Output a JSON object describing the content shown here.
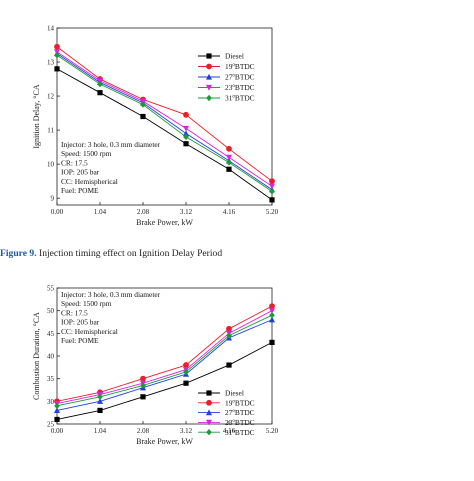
{
  "figures": [
    {
      "caption_label": "Figure 9.",
      "caption_text": "Injection timing effect on Ignition Delay Period"
    }
  ],
  "colors": {
    "diesel": "#000000",
    "btdc19": "#e8202a",
    "btdc27": "#1f3fe0",
    "btdc23": "#e020e0",
    "btdc31": "#1a9a3a"
  },
  "chart_data": [
    {
      "type": "line",
      "xlabel": "Brake Power, kW",
      "ylabel": "Ignition Delay, °CA",
      "x": [
        0.0,
        1.04,
        2.08,
        3.12,
        4.16,
        5.2
      ],
      "x_tick_labels": [
        "0.00",
        "1.04",
        "2.08",
        "3.12",
        "4.16",
        "5.20"
      ],
      "xlim": [
        0,
        5.2
      ],
      "ylim": [
        8.8,
        14
      ],
      "y_ticks": [
        9,
        10,
        11,
        12,
        13,
        14
      ],
      "y_tick_labels": [
        "9",
        "10",
        "11",
        "12",
        "13",
        "14"
      ],
      "legend_position": "right",
      "annotations": [
        "Injector: 3 hole, 0.3 mm diameter",
        "Speed: 1500 rpm",
        "CR: 17.5",
        "IOP: 205 bar",
        "CC: Hemispherical",
        "Fuel: POME"
      ],
      "series": [
        {
          "name": "Diesel",
          "name_base": "Diesel",
          "name_sup": "",
          "name_suffix": "",
          "marker": "square",
          "color_key": "diesel",
          "values": [
            12.8,
            12.1,
            11.4,
            10.6,
            9.85,
            8.95
          ]
        },
        {
          "name": "19°BTDC",
          "name_base": "19",
          "name_sup": "o",
          "name_suffix": "BTDC",
          "marker": "circle",
          "color_key": "btdc19",
          "values": [
            13.45,
            12.5,
            11.9,
            11.45,
            10.45,
            9.5
          ]
        },
        {
          "name": "27°BTDC",
          "name_base": "27",
          "name_sup": "o",
          "name_suffix": "BTDC",
          "marker": "triangle-up",
          "color_key": "btdc27",
          "values": [
            13.25,
            12.4,
            11.8,
            10.9,
            10.1,
            9.25
          ]
        },
        {
          "name": "23°BTDC",
          "name_base": "23",
          "name_sup": "o",
          "name_suffix": "BTDC",
          "marker": "triangle-down",
          "color_key": "btdc23",
          "values": [
            13.3,
            12.45,
            11.85,
            11.05,
            10.2,
            9.35
          ]
        },
        {
          "name": "31°BTDC",
          "name_base": "31",
          "name_sup": "o",
          "name_suffix": "BTDC",
          "marker": "diamond",
          "color_key": "btdc31",
          "values": [
            13.2,
            12.35,
            11.75,
            10.8,
            10.05,
            9.2
          ]
        }
      ]
    },
    {
      "type": "line",
      "xlabel": "Brake Power, kW",
      "ylabel": "Combustion Duration, °CA",
      "x": [
        0.0,
        1.04,
        2.08,
        3.12,
        4.16,
        5.2
      ],
      "x_tick_labels": [
        "0.00",
        "1.04",
        "2.08",
        "3.12",
        "4.16",
        "5.20"
      ],
      "xlim": [
        0,
        5.2
      ],
      "ylim": [
        25,
        55
      ],
      "y_ticks": [
        25,
        30,
        35,
        40,
        45,
        50,
        55
      ],
      "y_tick_labels": [
        "25",
        "30",
        "35",
        "40",
        "45",
        "50",
        "55"
      ],
      "legend_position": "bottom-right",
      "annotations": [
        "Injector: 3 hole, 0.3 mm diameter",
        "Speed: 1500 rpm",
        "CR: 17.5",
        "IOP: 205 bar",
        "CC: Hemispherical",
        "Fuel: POME"
      ],
      "series": [
        {
          "name": "Diesel",
          "name_base": "Diesel",
          "name_sup": "",
          "name_suffix": "",
          "marker": "square",
          "color_key": "diesel",
          "values": [
            26,
            28,
            31,
            34,
            38,
            43
          ]
        },
        {
          "name": "19°BTDC",
          "name_base": "19",
          "name_sup": "o",
          "name_suffix": "BTDC",
          "marker": "circle",
          "color_key": "btdc19",
          "values": [
            30,
            32,
            35,
            38,
            46,
            51
          ]
        },
        {
          "name": "27°BTDC",
          "name_base": "27",
          "name_sup": "o",
          "name_suffix": "BTDC",
          "marker": "triangle-up",
          "color_key": "btdc27",
          "values": [
            28,
            30,
            33,
            36,
            44,
            48
          ]
        },
        {
          "name": "23°BTDC",
          "name_base": "23",
          "name_sup": "o",
          "name_suffix": "BTDC",
          "marker": "triangle-down",
          "color_key": "btdc23",
          "values": [
            29.5,
            31.5,
            34,
            37,
            45,
            50
          ]
        },
        {
          "name": "31°BTDC",
          "name_base": "31",
          "name_sup": "o",
          "name_suffix": "BTDC",
          "marker": "diamond",
          "color_key": "btdc31",
          "values": [
            29,
            31,
            33.5,
            36.5,
            44.5,
            49
          ]
        }
      ]
    }
  ]
}
